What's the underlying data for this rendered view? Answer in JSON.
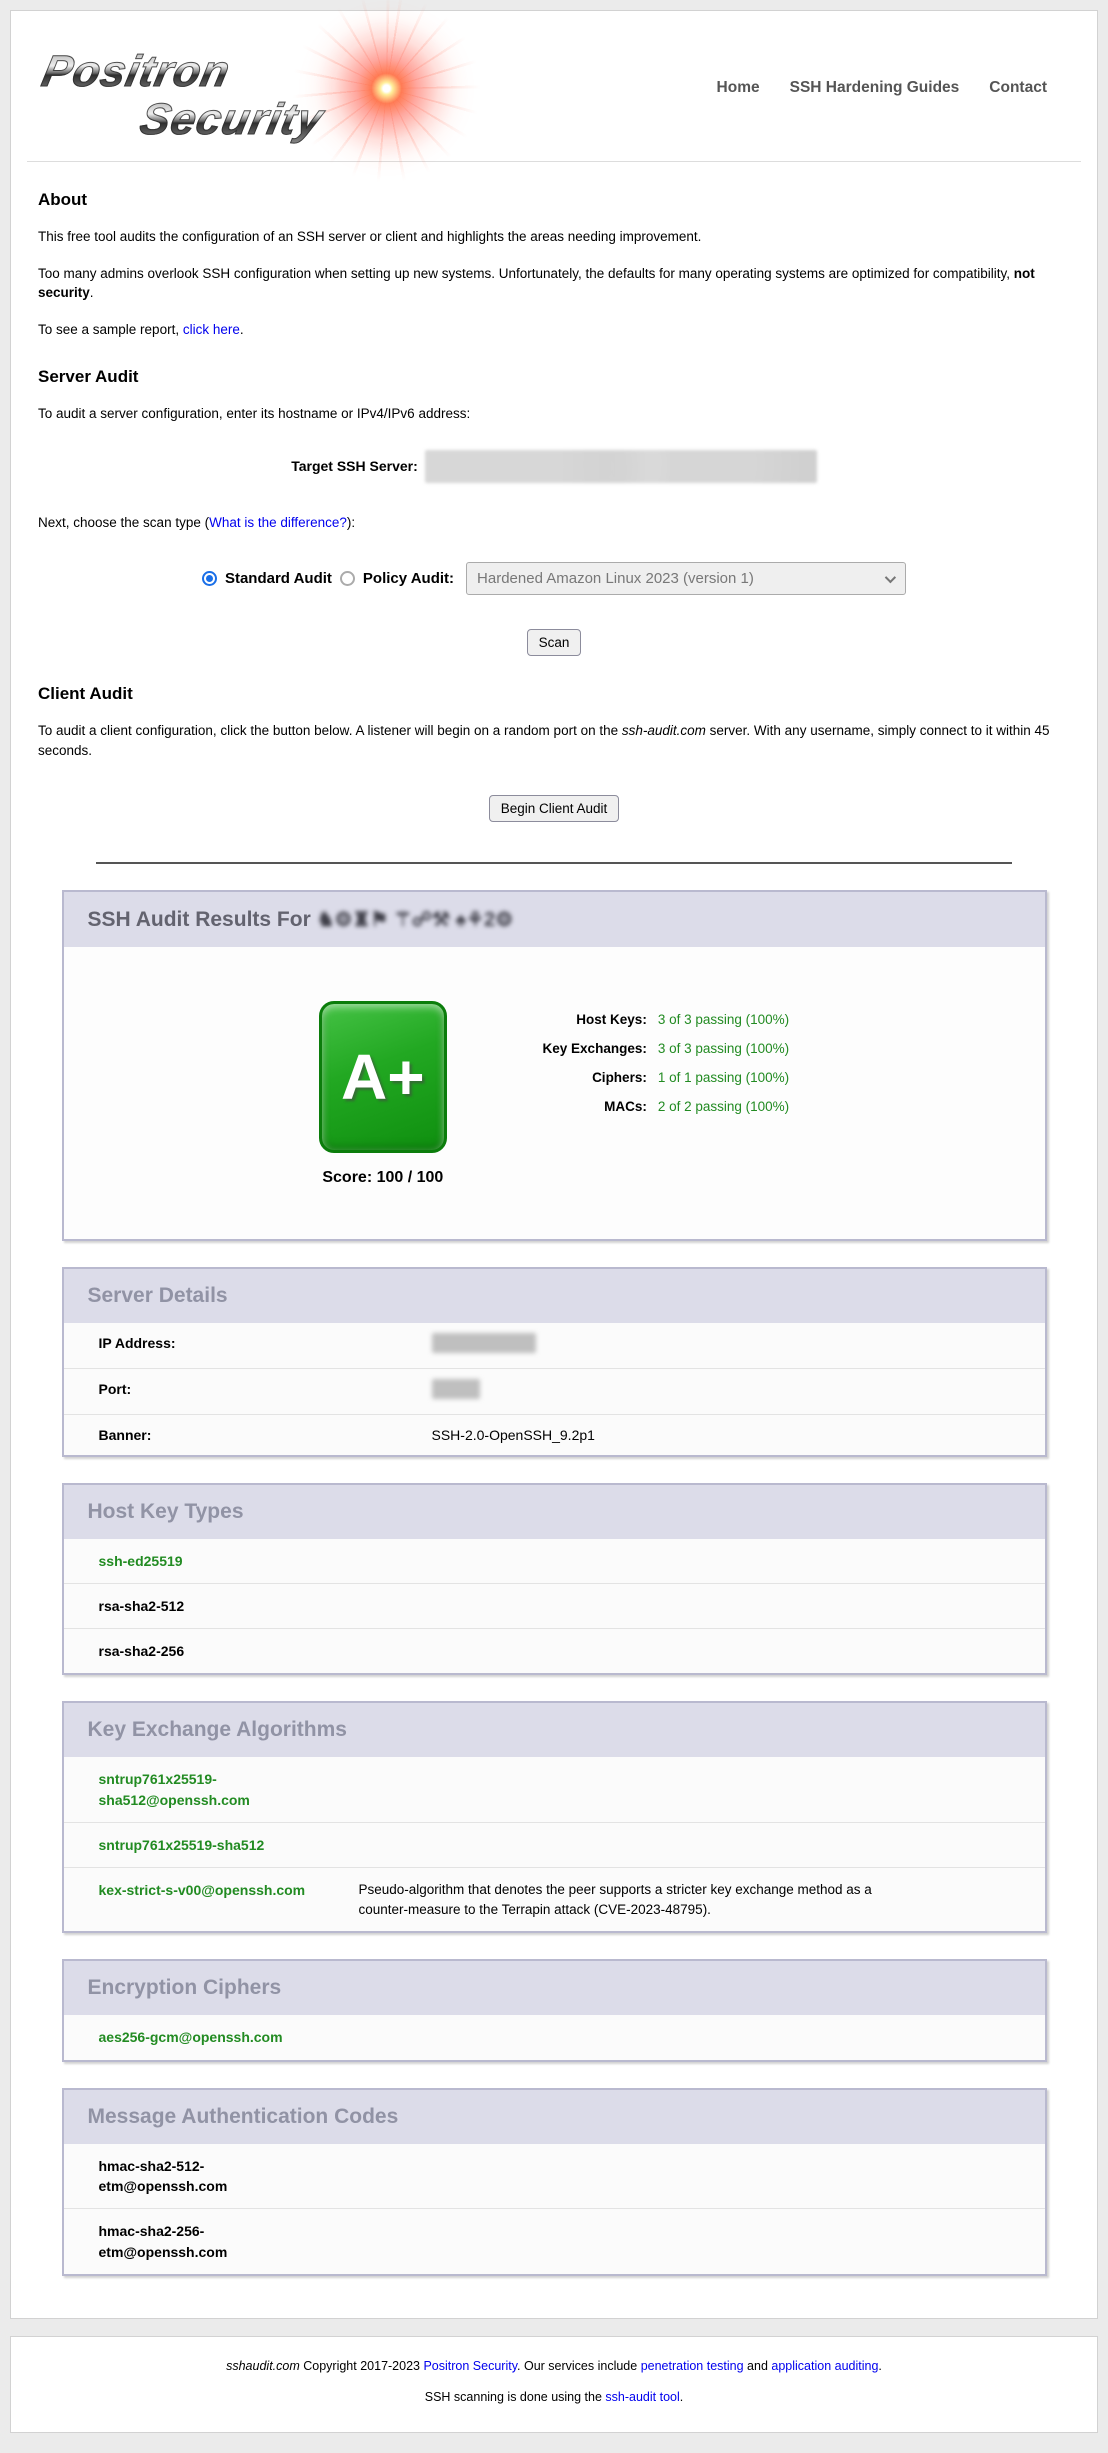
{
  "colors": {
    "good_green": "#228b22",
    "link_blue": "#0000ee",
    "panel_header_bg": "#dcdce9",
    "panel_border": "#b9b9cf",
    "grade_green": "#22a822",
    "radio_blue": "#1a6fe8",
    "burst_red": "#ff3c28"
  },
  "header": {
    "logo_line1": "Positron",
    "logo_line2": "Security",
    "nav": [
      {
        "label": "Home"
      },
      {
        "label": "SSH Hardening Guides"
      },
      {
        "label": "Contact"
      }
    ]
  },
  "about": {
    "heading": "About",
    "p1": "This free tool audits the configuration of an SSH server or client and highlights the areas needing improvement.",
    "p2_before": "Too many admins overlook SSH configuration when setting up new systems. Unfortunately, the defaults for many operating systems are optimized for compatibility, ",
    "p2_bold": "not security",
    "p2_after": ".",
    "p3_before": "To see a sample report, ",
    "p3_link": "click here",
    "p3_after": "."
  },
  "server_audit": {
    "heading": "Server Audit",
    "intro": "To audit a server configuration, enter its hostname or IPv4/IPv6 address:",
    "target_label": "Target SSH Server:",
    "scan_type_before": "Next, choose the scan type (",
    "scan_type_link": "What is the difference?",
    "scan_type_after": "):",
    "standard_label": "Standard Audit",
    "policy_label": "Policy Audit:",
    "policy_selected_option": "Hardened Amazon Linux 2023 (version 1)",
    "scan_button": "Scan"
  },
  "client_audit": {
    "heading": "Client Audit",
    "p_before": "To audit a client configuration, click the button below. A listener will begin on a random port on the ",
    "p_italic": "ssh-audit.com",
    "p_after": " server. With any username, simply connect to it within 45 seconds.",
    "button": "Begin Client Audit"
  },
  "results": {
    "title_prefix": "SSH Audit Results For ",
    "redacted_host": "♞⚙♜⚑ ⚚☍⚒ ♠⚘2⚙",
    "grade": "A+",
    "score_label": "Score: 100 / 100",
    "stats": [
      {
        "label": "Host Keys:",
        "value": "3 of 3 passing (100%)"
      },
      {
        "label": "Key Exchanges:",
        "value": "3 of 3 passing (100%)"
      },
      {
        "label": "Ciphers:",
        "value": "1 of 1 passing (100%)"
      },
      {
        "label": "MACs:",
        "value": "2 of 2 passing (100%)"
      }
    ]
  },
  "server_details": {
    "heading": "Server Details",
    "rows": [
      {
        "label": "IP Address:",
        "value": "",
        "redacted": true
      },
      {
        "label": "Port:",
        "value": "",
        "redacted": true
      },
      {
        "label": "Banner:",
        "value": "SSH-2.0-OpenSSH_9.2p1",
        "redacted": false
      }
    ]
  },
  "host_key_types": {
    "heading": "Host Key Types",
    "items": [
      {
        "name": "ssh-ed25519",
        "status": "good"
      },
      {
        "name": "rsa-sha2-512",
        "status": "neutral"
      },
      {
        "name": "rsa-sha2-256",
        "status": "neutral"
      }
    ]
  },
  "kex": {
    "heading": "Key Exchange Algorithms",
    "items": [
      {
        "name": "sntrup761x25519-sha512@openssh.com",
        "status": "good",
        "note": ""
      },
      {
        "name": "sntrup761x25519-sha512",
        "status": "good",
        "note": ""
      },
      {
        "name": "kex-strict-s-v00@openssh.com",
        "status": "good",
        "note": "Pseudo-algorithm that denotes the peer supports a stricter key exchange method as a counter-measure to the Terrapin attack (CVE-2023-48795)."
      }
    ]
  },
  "ciphers": {
    "heading": "Encryption Ciphers",
    "items": [
      {
        "name": "aes256-gcm@openssh.com",
        "status": "good"
      }
    ]
  },
  "macs": {
    "heading": "Message Authentication Codes",
    "items": [
      {
        "name": "hmac-sha2-512-etm@openssh.com",
        "status": "neutral"
      },
      {
        "name": "hmac-sha2-256-etm@openssh.com",
        "status": "neutral"
      }
    ]
  },
  "footer": {
    "line1_italic": "sshaudit.com",
    "line1_mid": " Copyright 2017-2023 ",
    "link_positron": "Positron Security",
    "line1_mid2": ". Our services include ",
    "link_pentest": "penetration testing",
    "line1_and": " and ",
    "link_appaudit": "application auditing",
    "line1_end": ".",
    "line2_before": "SSH scanning is done using the ",
    "link_sshaudit": "ssh-audit tool",
    "line2_end": "."
  }
}
